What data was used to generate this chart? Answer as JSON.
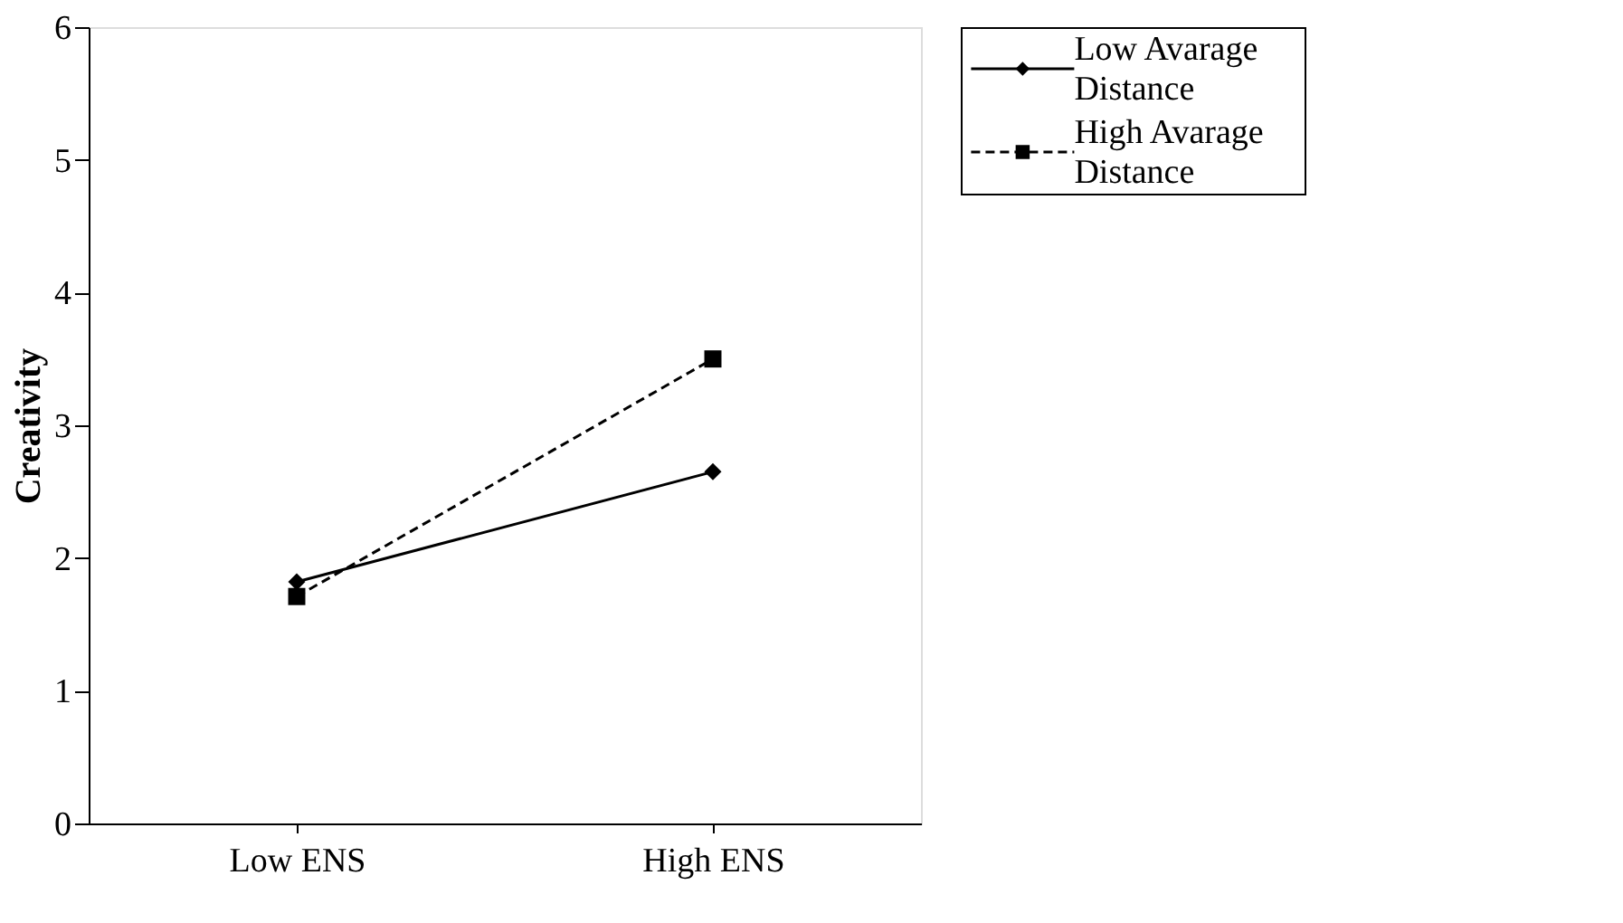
{
  "chart_data": {
    "type": "line",
    "ylabel": "Creativity",
    "categories": [
      "Low ENS",
      "High ENS"
    ],
    "series": [
      {
        "name": "Low Avarage Distance",
        "color": "#000000",
        "values": [
          1.82,
          2.65
        ],
        "marker": "diamond",
        "line_style": "solid"
      },
      {
        "name": "High Avarage Distance",
        "color": "#000000",
        "values": [
          1.71,
          3.5
        ],
        "marker": "square",
        "line_style": "dashed"
      }
    ],
    "ylim": [
      0,
      6
    ],
    "yticks": [
      0,
      1,
      2,
      3,
      4,
      5,
      6
    ],
    "grid": false,
    "legend": "right"
  }
}
